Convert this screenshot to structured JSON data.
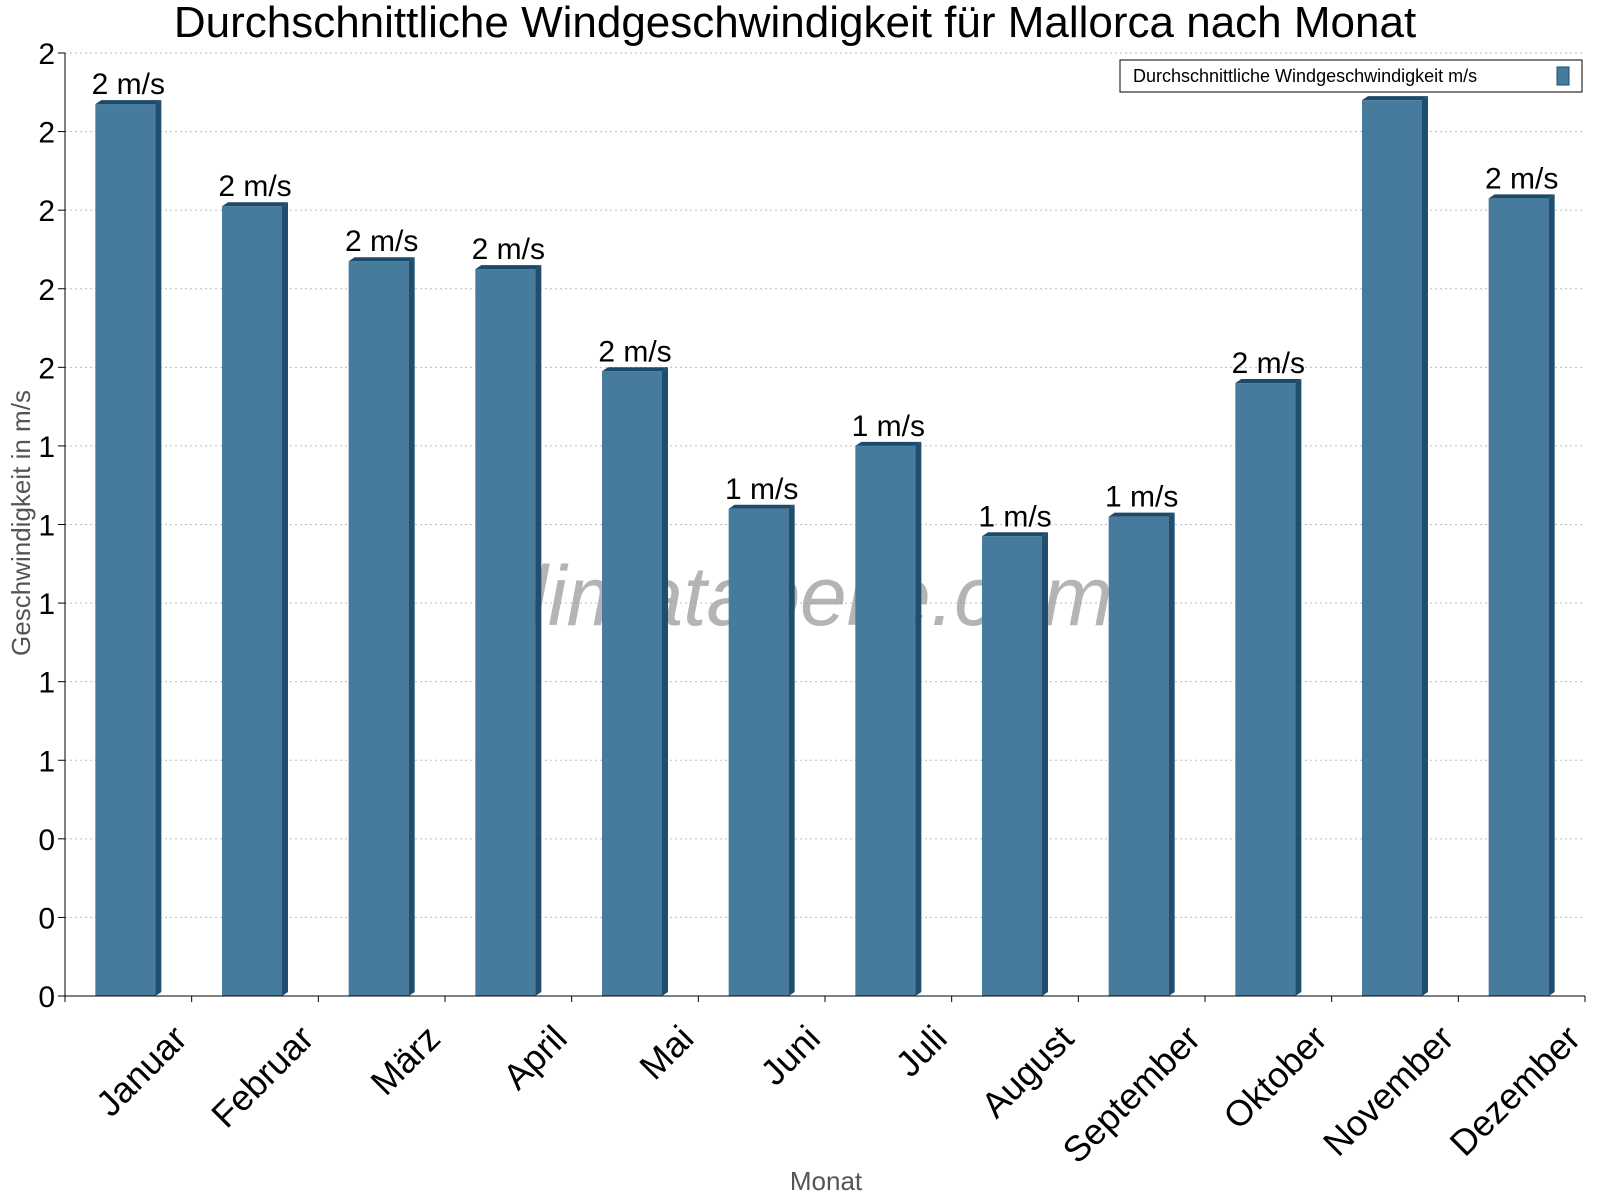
{
  "chart_data": {
    "type": "bar",
    "title": "Durchschnittliche Windgeschwindigkeit für Mallorca nach Monat",
    "xlabel": "Monat",
    "ylabel": "Geschwindigkeit in m/s",
    "categories": [
      "Januar",
      "Februar",
      "März",
      "April",
      "Mai",
      "Juni",
      "Juli",
      "August",
      "September",
      "Oktober",
      "November",
      "Dezember"
    ],
    "series": [
      {
        "name": "Durchschnittliche Windgeschwindigkeit m/s",
        "values": [
          2.27,
          2.01,
          1.87,
          1.85,
          1.59,
          1.24,
          1.4,
          1.17,
          1.22,
          1.56,
          2.28,
          2.03
        ],
        "data_labels": [
          "2 m/s",
          "2 m/s",
          "2 m/s",
          "2 m/s",
          "2 m/s",
          "1 m/s",
          "1 m/s",
          "1 m/s",
          "1 m/s",
          "2 m/s",
          "2 m/s",
          "2 m/s"
        ]
      }
    ],
    "y_ticks": [
      0,
      0.2,
      0.4,
      0.6,
      0.8,
      1.0,
      1.2,
      1.4,
      1.6,
      1.8,
      2.0,
      2.2,
      2.4
    ],
    "y_tick_labels": [
      "0",
      "0",
      "0",
      "1",
      "1",
      "1",
      "1",
      "1",
      "2",
      "2",
      "2",
      "2",
      "2"
    ],
    "ylim": [
      0,
      2.4
    ],
    "grid": true,
    "legend_position": "top-right",
    "bar_color": "#477b9e",
    "bar_side_color": "#1f4e6e",
    "bar_top_color": "#1c4a6a",
    "watermark": "klimatabelle.com"
  }
}
